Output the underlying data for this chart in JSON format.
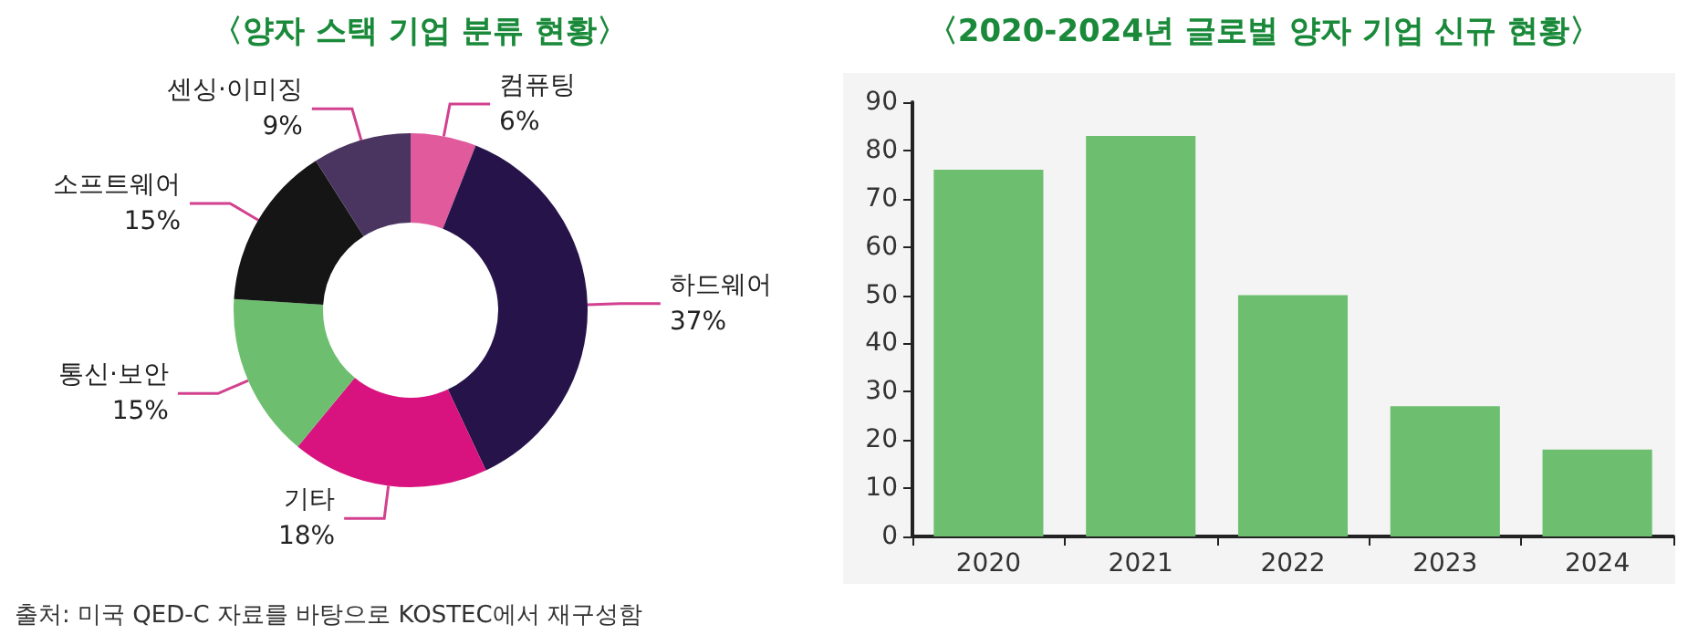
{
  "chart_data": [
    {
      "type": "donut",
      "title": "〈양자 스택 기업 분류 현황〉",
      "categories": [
        "컴퓨팅",
        "하드웨어",
        "기타",
        "통신·보안",
        "소프트웨어",
        "센싱·이미징"
      ],
      "values": [
        6,
        37,
        18,
        15,
        15,
        9
      ],
      "value_labels": [
        "6%",
        "37%",
        "18%",
        "15%",
        "15%",
        "9%"
      ],
      "colors": [
        "#e05a9c",
        "#25134a",
        "#d8137f",
        "#6dbf6f",
        "#151515",
        "#4a3560"
      ],
      "legend": false,
      "annotations": [
        "출처: 미국 QED-C 자료를 바탕으로 KOSTEC에서 재구성함"
      ]
    },
    {
      "type": "bar",
      "title": "〈2020-2024년 글로벌 양자 기업 신규 현황〉",
      "categories": [
        "2020",
        "2021",
        "2022",
        "2023",
        "2024"
      ],
      "values": [
        76,
        83,
        50,
        27,
        18
      ],
      "color": "#6dbf6f",
      "ylim": [
        0,
        90
      ],
      "yticks": [
        0,
        10,
        20,
        30,
        40,
        50,
        60,
        70,
        80,
        90
      ],
      "grid": false,
      "legend": false
    }
  ]
}
